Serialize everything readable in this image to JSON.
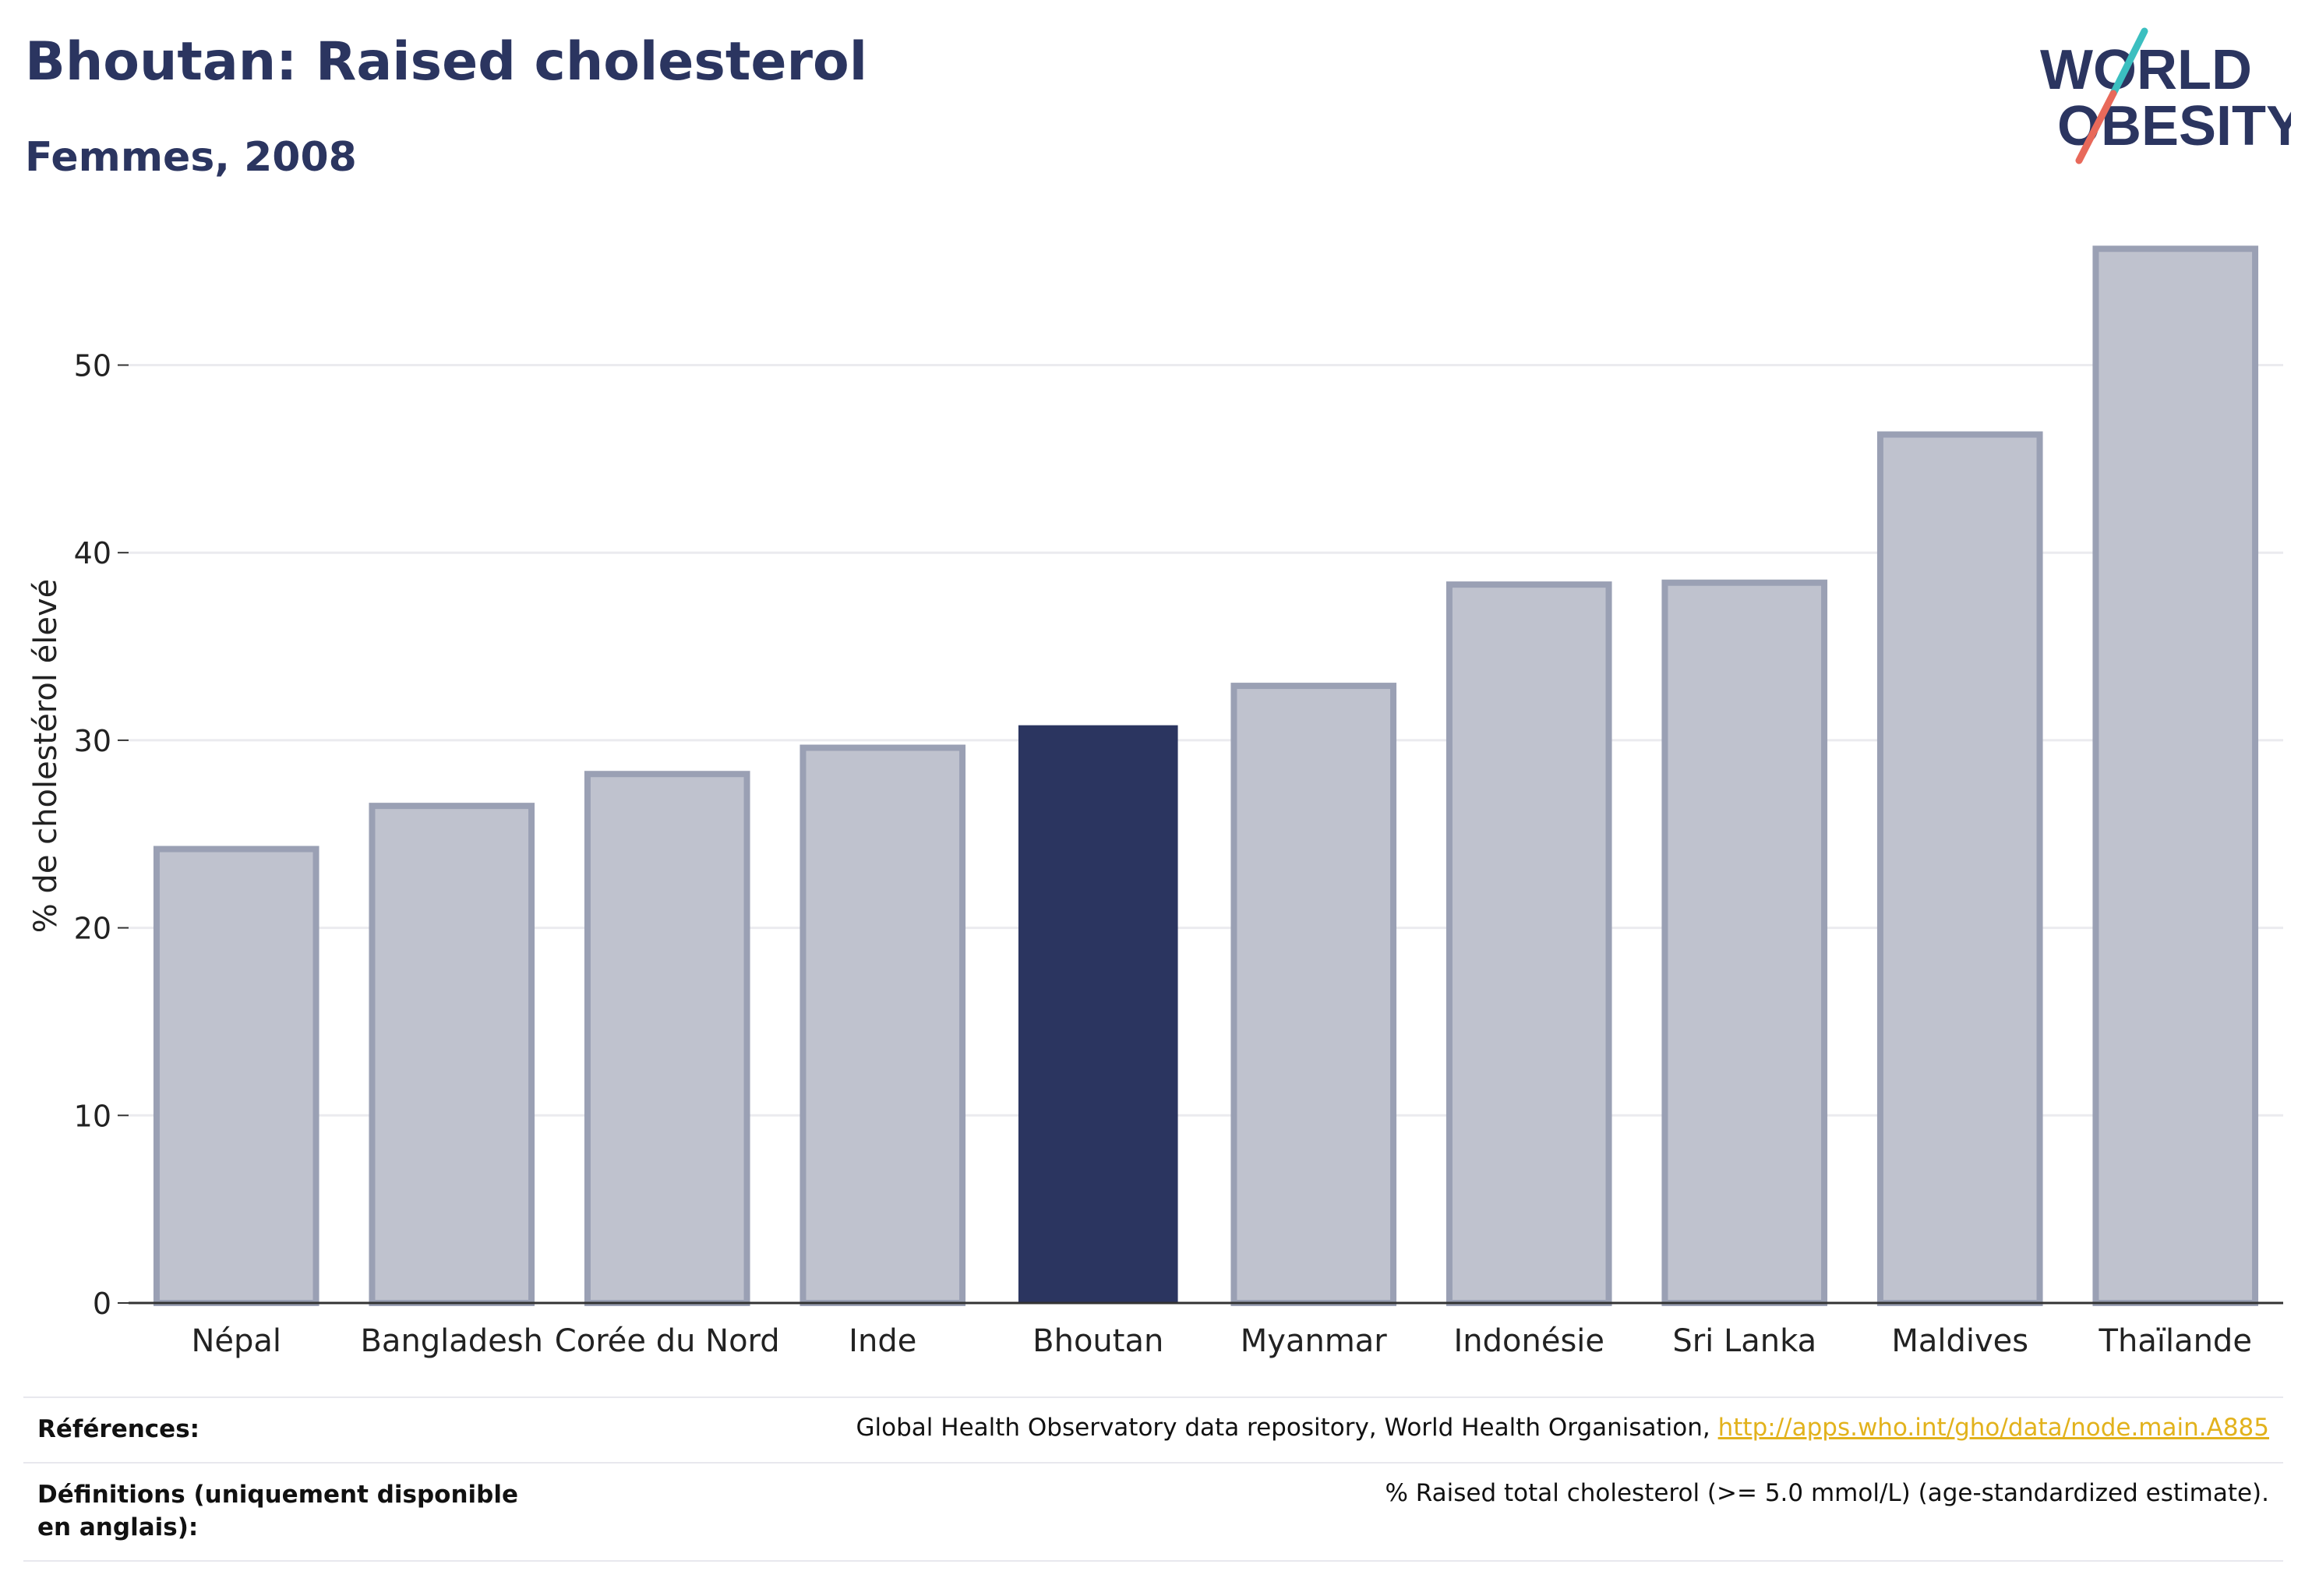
{
  "header": {
    "title": "Bhoutan: Raised cholesterol",
    "subtitle": "Femmes, 2008"
  },
  "logo": {
    "line1": "WORLD",
    "line2": "OBESITY",
    "colors": {
      "text": "#2b3560",
      "teal": "#3bbfc0",
      "coral": "#e8695a"
    }
  },
  "chart_data": {
    "type": "bar",
    "title": "Bhoutan: Raised cholesterol",
    "subtitle": "Femmes, 2008",
    "xlabel": "",
    "ylabel": "% de cholestérol élevé",
    "ylim": [
      0,
      57
    ],
    "yticks": [
      0,
      10,
      20,
      30,
      40,
      50
    ],
    "grid": true,
    "categories": [
      "Népal",
      "Bangladesh",
      "Corée du Nord",
      "Inde",
      "Bhoutan",
      "Myanmar",
      "Indonésie",
      "Sri Lanka",
      "Maldives",
      "Thaïlande"
    ],
    "values": [
      24.2,
      26.5,
      28.2,
      29.6,
      30.8,
      32.9,
      38.3,
      38.4,
      46.3,
      56.2
    ],
    "highlight": "Bhoutan",
    "colors": {
      "highlight": "#2b3560",
      "other_fill": "#bfc2ce",
      "other_stroke": "#9aa0b4",
      "grid": "#ebebef",
      "axis": "#333333"
    }
  },
  "footer": {
    "references_label": "Références:",
    "references_text": "Global Health Observatory data repository, World Health Organisation, ",
    "references_link": "http://apps.who.int/gho/data/node.main.A885",
    "definitions_label": "Définitions (uniquement disponible en anglais):",
    "definitions_text": "% Raised total cholesterol (>= 5.0 mmol/L) (age-standardized estimate)."
  }
}
